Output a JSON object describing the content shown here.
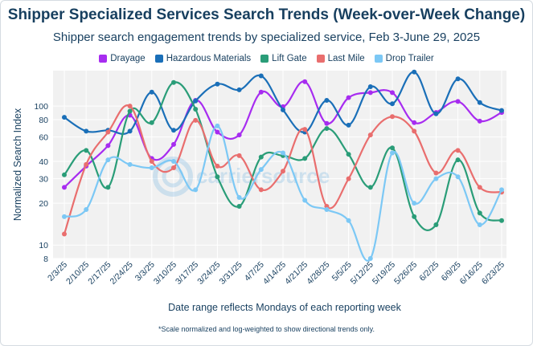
{
  "chart_data": {
    "type": "line",
    "title": "Shipper Specialized Services Search Trends (Week-over-Week Change)",
    "subtitle": "Shipper search engagement trends by specialized service, Feb 3-June 29, 2025",
    "xlabel": "Date range reflects Mondays of each reporting week",
    "ylabel": "Normalized Search Index",
    "yscale": "log",
    "ylim": [
      8,
      180
    ],
    "yticks": [
      8,
      10,
      20,
      30,
      40,
      60,
      80,
      100
    ],
    "legend_position": "top-center",
    "watermark": "carriersource",
    "footnote": "*Scale normalized and log-weighted to show directional trends only.",
    "categories": [
      "2/3/25",
      "2/10/25",
      "2/17/25",
      "2/24/25",
      "3/3/25",
      "3/10/25",
      "3/17/25",
      "3/24/25",
      "3/31/25",
      "4/7/25",
      "4/14/25",
      "4/21/25",
      "4/28/25",
      "5/5/25",
      "5/12/25",
      "5/19/25",
      "5/26/25",
      "6/2/25",
      "6/9/25",
      "6/16/25",
      "6/23/25"
    ],
    "series": [
      {
        "name": "Drayage",
        "color": "#a72cf0",
        "values": [
          26,
          37,
          52,
          86,
          42,
          53,
          110,
          65,
          62,
          126,
          99,
          150,
          75,
          115,
          125,
          125,
          76,
          90,
          108,
          78,
          90
        ]
      },
      {
        "name": "Hazardous Materials",
        "color": "#1a6fb8",
        "values": [
          83,
          66,
          67,
          66,
          126,
          67,
          109,
          144,
          131,
          165,
          94,
          65,
          110,
          73,
          138,
          104,
          176,
          88,
          157,
          106,
          93
        ]
      },
      {
        "name": "Lift Gate",
        "color": "#2a9d78",
        "values": [
          32,
          48,
          26,
          92,
          76,
          148,
          95,
          31,
          19,
          43,
          44,
          42,
          69,
          45,
          26,
          50,
          16,
          14,
          41,
          17,
          15
        ]
      },
      {
        "name": "Last Mile",
        "color": "#e96e6e",
        "values": [
          12,
          38,
          65,
          100,
          40,
          36,
          79,
          37,
          44,
          25,
          34,
          68,
          19,
          30,
          62,
          84,
          66,
          33,
          48,
          26,
          24
        ]
      },
      {
        "name": "Drop Trailer",
        "color": "#7cc8f5",
        "values": [
          16,
          18,
          41,
          38,
          36,
          40,
          25,
          72,
          22,
          35,
          46,
          21,
          18,
          15,
          8,
          46,
          20,
          30,
          31,
          14,
          25
        ]
      }
    ]
  }
}
